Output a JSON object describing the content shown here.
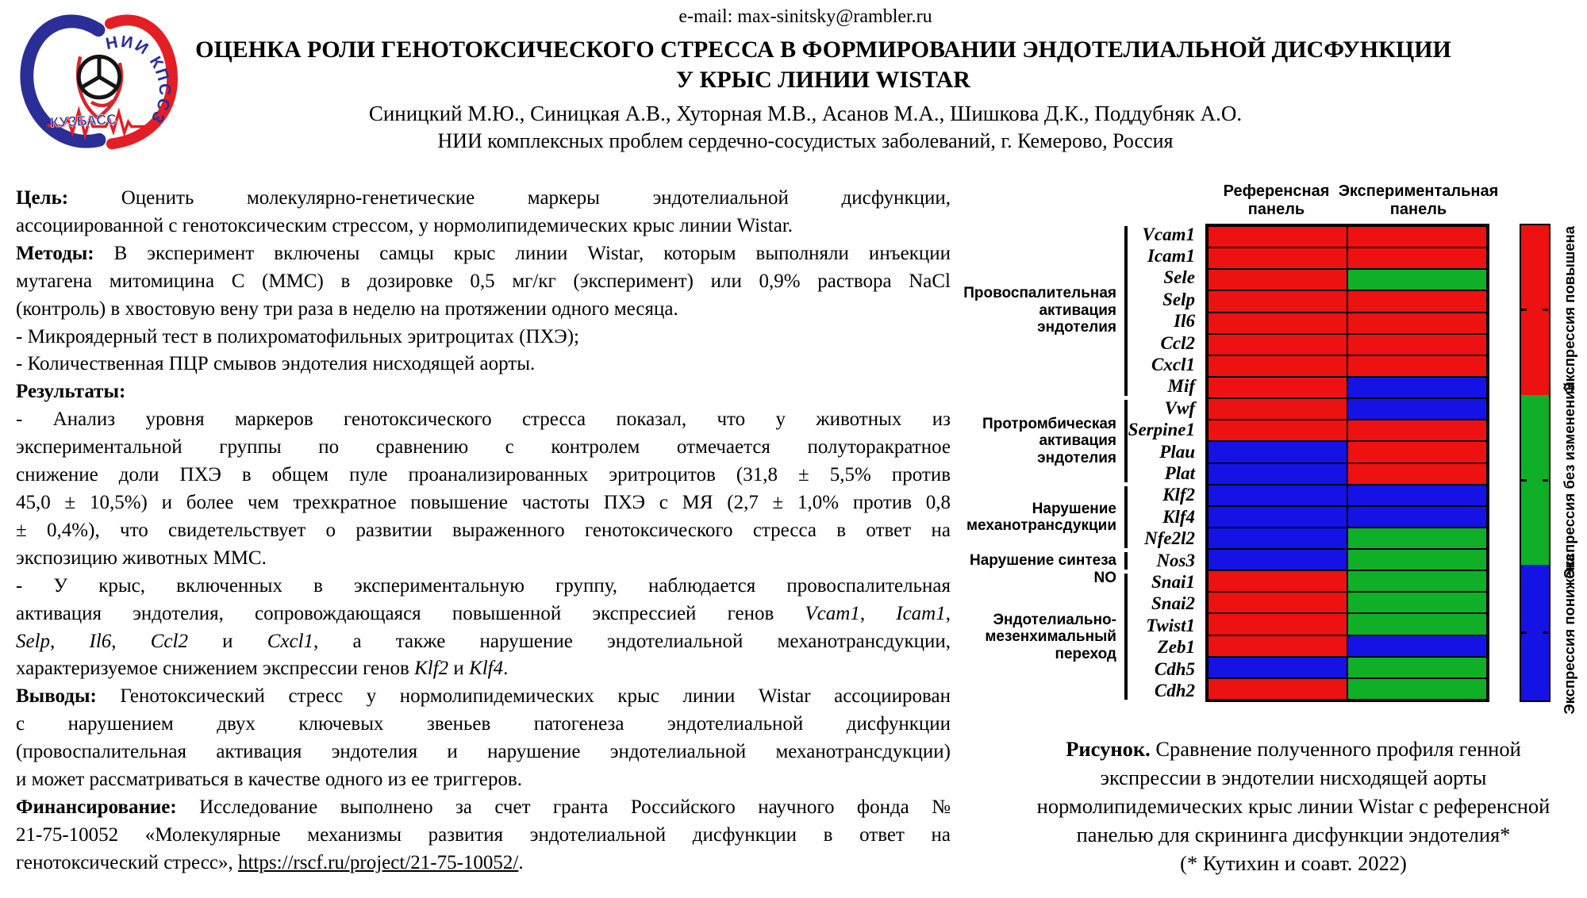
{
  "header": {
    "email": "e-mail: max-sinitsky@rambler.ru",
    "title_line1": "ОЦЕНКА РОЛИ ГЕНОТОКСИЧЕСКОГО СТРЕССА В ФОРМИРОВАНИИ ЭНДОТЕЛИАЛЬНОЙ ДИСФУНКЦИИ",
    "title_line2": "У КРЫС ЛИНИИ WISTAR",
    "authors": "Синицкий М.Ю., Синицкая А.В., Хуторная М.В., Асанов М.А., Шишкова Д.К., Поддубняк А.О.",
    "institution": "НИИ комплексных проблем сердечно-сосудистых заболеваний, г. Кемерово, Россия",
    "logo": {
      "top_text": "НИИ КПССЗ",
      "bottom_text": "КУЗБАСС",
      "blue": "#2B2E96",
      "red": "#E31E24"
    }
  },
  "body": {
    "lines": [
      {
        "seg": [
          {
            "t": "Цель:",
            "b": true
          },
          {
            "t": " Оценить молекулярно-генетические маркеры эндотелиальной дисфункции,"
          }
        ]
      },
      {
        "seg": [
          {
            "t": "ассоциированной с генотоксическим стрессом, у нормолипидемических крыс линии Wistar."
          }
        ],
        "last": true
      },
      {
        "seg": [
          {
            "t": "Методы:",
            "b": true
          },
          {
            "t": " В эксперимент включены самцы крыс линии Wistar, которым выполняли инъекции"
          }
        ]
      },
      {
        "seg": [
          {
            "t": "мутагена митомицина С (ММС) в дозировке 0,5 мг/кг (эксперимент) или 0,9% раствора NaCl"
          }
        ]
      },
      {
        "seg": [
          {
            "t": "(контроль) в хвостовую вену три раза в неделю на протяжении одного месяца."
          }
        ],
        "last": true
      },
      {
        "seg": [
          {
            "t": "- Микроядерный тест в полихроматофильных эритроцитах (ПХЭ);"
          }
        ],
        "last": true
      },
      {
        "seg": [
          {
            "t": "- Количественная ПЦР смывов эндотелия нисходящей аорты."
          }
        ],
        "last": true
      },
      {
        "seg": [
          {
            "t": "Результаты:",
            "b": true
          }
        ],
        "last": true
      },
      {
        "seg": [
          {
            "t": "- Анализ уровня маркеров генотоксического стресса показал, что у животных из"
          }
        ]
      },
      {
        "seg": [
          {
            "t": "экспериментальной группы по сравнению с контролем отмечается полуторакратное"
          }
        ]
      },
      {
        "seg": [
          {
            "t": "снижение доли ПХЭ в общем пуле проанализированных эритроцитов (31,8 ± 5,5% против"
          }
        ]
      },
      {
        "seg": [
          {
            "t": "45,0 ± 10,5%) и более чем трехкратное повышение частоты ПХЭ с МЯ (2,7 ± 1,0% против 0,8"
          }
        ]
      },
      {
        "seg": [
          {
            "t": "± 0,4%), что свидетельствует о развитии выраженного генотоксического стресса в ответ на"
          }
        ]
      },
      {
        "seg": [
          {
            "t": "экспозицию животных ММС."
          }
        ],
        "last": true
      },
      {
        "seg": [
          {
            "t": "- У крыс, включенных в экспериментальную группу, наблюдается провоспалительная"
          }
        ]
      },
      {
        "seg": [
          {
            "t": "активация эндотелия, сопровождающаяся повышенной экспрессией генов "
          },
          {
            "t": "Vcam1",
            "i": true
          },
          {
            "t": ", "
          },
          {
            "t": "Icam1",
            "i": true
          },
          {
            "t": ","
          }
        ]
      },
      {
        "seg": [
          {
            "t": "Selp",
            "i": true
          },
          {
            "t": ", "
          },
          {
            "t": "Il6",
            "i": true
          },
          {
            "t": ", "
          },
          {
            "t": "Ccl2",
            "i": true
          },
          {
            "t": " и "
          },
          {
            "t": "Cxcl1",
            "i": true
          },
          {
            "t": ", а также нарушение эндотелиальной механотрансдукции,"
          }
        ]
      },
      {
        "seg": [
          {
            "t": "характеризуемое снижением экспрессии генов "
          },
          {
            "t": "Klf2",
            "i": true
          },
          {
            "t": " и "
          },
          {
            "t": "Klf4",
            "i": true
          },
          {
            "t": "."
          }
        ],
        "last": true
      },
      {
        "seg": [
          {
            "t": "Выводы:",
            "b": true
          },
          {
            "t": " Генотоксический стресс у нормолипидемических крыс линии Wistar ассоциирован"
          }
        ]
      },
      {
        "seg": [
          {
            "t": "с нарушением двух ключевых звеньев патогенеза эндотелиальной дисфункции"
          }
        ]
      },
      {
        "seg": [
          {
            "t": "(провоспалительная активация эндотелия и нарушение эндотелиальной механотрансдукции)"
          }
        ]
      },
      {
        "seg": [
          {
            "t": "и может рассматриваться в качестве одного из ее триггеров."
          }
        ],
        "last": true
      },
      {
        "seg": [
          {
            "t": "Финансирование:",
            "b": true
          },
          {
            "t": " Исследование выполнено за счет гранта Российского научного фонда №"
          }
        ]
      },
      {
        "seg": [
          {
            "t": "21-75-10052 «Молекулярные механизмы развития эндотелиальной дисфункции в ответ на"
          }
        ]
      },
      {
        "seg": [
          {
            "t": "генотоксический стресс», "
          },
          {
            "t": "https://rscf.ru/project/21-75-10052/",
            "u": true
          },
          {
            "t": "."
          }
        ],
        "last": true
      }
    ]
  },
  "figure": {
    "column_headers": [
      [
        "Референсная",
        "панель"
      ],
      [
        "Экспериментальная",
        "панель"
      ]
    ],
    "status_colors": {
      "up": "#EE1111",
      "no_change": "#10AF28",
      "down": "#1512E6"
    },
    "genes": [
      {
        "name": "Vcam1",
        "ref": "up",
        "exp": "up"
      },
      {
        "name": "Icam1",
        "ref": "up",
        "exp": "up"
      },
      {
        "name": "Sele",
        "ref": "up",
        "exp": "no_change"
      },
      {
        "name": "Selp",
        "ref": "up",
        "exp": "up"
      },
      {
        "name": "Il6",
        "ref": "up",
        "exp": "up"
      },
      {
        "name": "Ccl2",
        "ref": "up",
        "exp": "up"
      },
      {
        "name": "Cxcl1",
        "ref": "up",
        "exp": "up"
      },
      {
        "name": "Mif",
        "ref": "up",
        "exp": "down"
      },
      {
        "name": "Vwf",
        "ref": "up",
        "exp": "down"
      },
      {
        "name": "Serpine1",
        "ref": "up",
        "exp": "up"
      },
      {
        "name": "Plau",
        "ref": "down",
        "exp": "up"
      },
      {
        "name": "Plat",
        "ref": "down",
        "exp": "up"
      },
      {
        "name": "Klf2",
        "ref": "down",
        "exp": "down"
      },
      {
        "name": "Klf4",
        "ref": "down",
        "exp": "down"
      },
      {
        "name": "Nfe2l2",
        "ref": "down",
        "exp": "no_change"
      },
      {
        "name": "Nos3",
        "ref": "down",
        "exp": "no_change"
      },
      {
        "name": "Snai1",
        "ref": "up",
        "exp": "no_change"
      },
      {
        "name": "Snai2",
        "ref": "up",
        "exp": "no_change"
      },
      {
        "name": "Twist1",
        "ref": "up",
        "exp": "no_change"
      },
      {
        "name": "Zeb1",
        "ref": "up",
        "exp": "down"
      },
      {
        "name": "Cdh5",
        "ref": "down",
        "exp": "no_change"
      },
      {
        "name": "Cdh2",
        "ref": "up",
        "exp": "no_change"
      }
    ],
    "groups": [
      {
        "label": "Провоспалительная активация эндотелия",
        "lines": [
          "Провоспалительная",
          "активация",
          "эндотелия"
        ],
        "from": 0,
        "to": 7
      },
      {
        "label": "Протромбическая активация эндотелия",
        "lines": [
          "Протромбическая",
          "активация",
          "эндотелия"
        ],
        "from": 8,
        "to": 11
      },
      {
        "label": "Нарушение механотрансдукции",
        "lines": [
          "Нарушение",
          "механотрансдукции"
        ],
        "from": 12,
        "to": 14
      },
      {
        "label": "Нарушение синтеза NO",
        "lines": [
          "Нарушение синтеза NO"
        ],
        "from": 15,
        "to": 15
      },
      {
        "label": "Эндотелиально-мезенхимальный переход",
        "lines": [
          "Эндотелиально-",
          "мезенхимальный",
          "переход"
        ],
        "from": 16,
        "to": 21
      }
    ],
    "legend": [
      {
        "label": "Экспрессия повышена",
        "key": "up",
        "frac": 0.357
      },
      {
        "label": "Экспрессия без изменений",
        "key": "no_change",
        "frac": 0.358
      },
      {
        "label": "Экспрессия понижена",
        "key": "down",
        "frac": 0.285
      }
    ],
    "caption_lines": [
      {
        "seg": [
          {
            "t": "Рисунок.",
            "b": true
          },
          {
            "t": " Сравнение полученного профиля генной"
          }
        ]
      },
      {
        "seg": [
          {
            "t": "экспрессии в эндотелии нисходящей аорты"
          }
        ]
      },
      {
        "seg": [
          {
            "t": "нормолипидемических крыс линии Wistar с референсной"
          }
        ]
      },
      {
        "seg": [
          {
            "t": "панелью для скрининга дисфункции эндотелия*"
          }
        ]
      },
      {
        "seg": [
          {
            "t": "(* Кутихин и соавт. 2022)"
          }
        ]
      }
    ]
  },
  "chart_data": {
    "type": "heatmap",
    "title": "Сравнение полученного профиля генной экспрессии в эндотелии нисходящей аорты нормолипидемических крыс линии Wistar с референсной панелью для скрининга дисфункции эндотелия",
    "columns": [
      "Референсная панель",
      "Экспериментальная панель"
    ],
    "rows": [
      "Vcam1",
      "Icam1",
      "Sele",
      "Selp",
      "Il6",
      "Ccl2",
      "Cxcl1",
      "Mif",
      "Vwf",
      "Serpine1",
      "Plau",
      "Plat",
      "Klf2",
      "Klf4",
      "Nfe2l2",
      "Nos3",
      "Snai1",
      "Snai2",
      "Twist1",
      "Zeb1",
      "Cdh5",
      "Cdh2"
    ],
    "values": [
      [
        "up",
        "up"
      ],
      [
        "up",
        "up"
      ],
      [
        "up",
        "no_change"
      ],
      [
        "up",
        "up"
      ],
      [
        "up",
        "up"
      ],
      [
        "up",
        "up"
      ],
      [
        "up",
        "up"
      ],
      [
        "up",
        "down"
      ],
      [
        "up",
        "down"
      ],
      [
        "up",
        "up"
      ],
      [
        "down",
        "up"
      ],
      [
        "down",
        "up"
      ],
      [
        "down",
        "down"
      ],
      [
        "down",
        "down"
      ],
      [
        "down",
        "no_change"
      ],
      [
        "down",
        "no_change"
      ],
      [
        "up",
        "no_change"
      ],
      [
        "up",
        "no_change"
      ],
      [
        "up",
        "no_change"
      ],
      [
        "up",
        "down"
      ],
      [
        "down",
        "no_change"
      ],
      [
        "up",
        "no_change"
      ]
    ],
    "row_groups": [
      {
        "label": "Провоспалительная активация эндотелия",
        "rows": [
          "Vcam1",
          "Icam1",
          "Sele",
          "Selp",
          "Il6",
          "Ccl2",
          "Cxcl1",
          "Mif"
        ]
      },
      {
        "label": "Протромбическая активация эндотелия",
        "rows": [
          "Vwf",
          "Serpine1",
          "Plau",
          "Plat"
        ]
      },
      {
        "label": "Нарушение механотрансдукции",
        "rows": [
          "Klf2",
          "Klf4",
          "Nfe2l2"
        ]
      },
      {
        "label": "Нарушение синтеза NO",
        "rows": [
          "Nos3"
        ]
      },
      {
        "label": "Эндотелиально-мезенхимальный переход",
        "rows": [
          "Snai1",
          "Snai2",
          "Twist1",
          "Zeb1",
          "Cdh5",
          "Cdh2"
        ]
      }
    ],
    "legend": [
      {
        "key": "up",
        "label": "Экспрессия повышена",
        "color": "#EE1111"
      },
      {
        "key": "no_change",
        "label": "Экспрессия без изменений",
        "color": "#10AF28"
      },
      {
        "key": "down",
        "label": "Экспрессия понижена",
        "color": "#1512E6"
      }
    ],
    "legend_position": "right"
  }
}
